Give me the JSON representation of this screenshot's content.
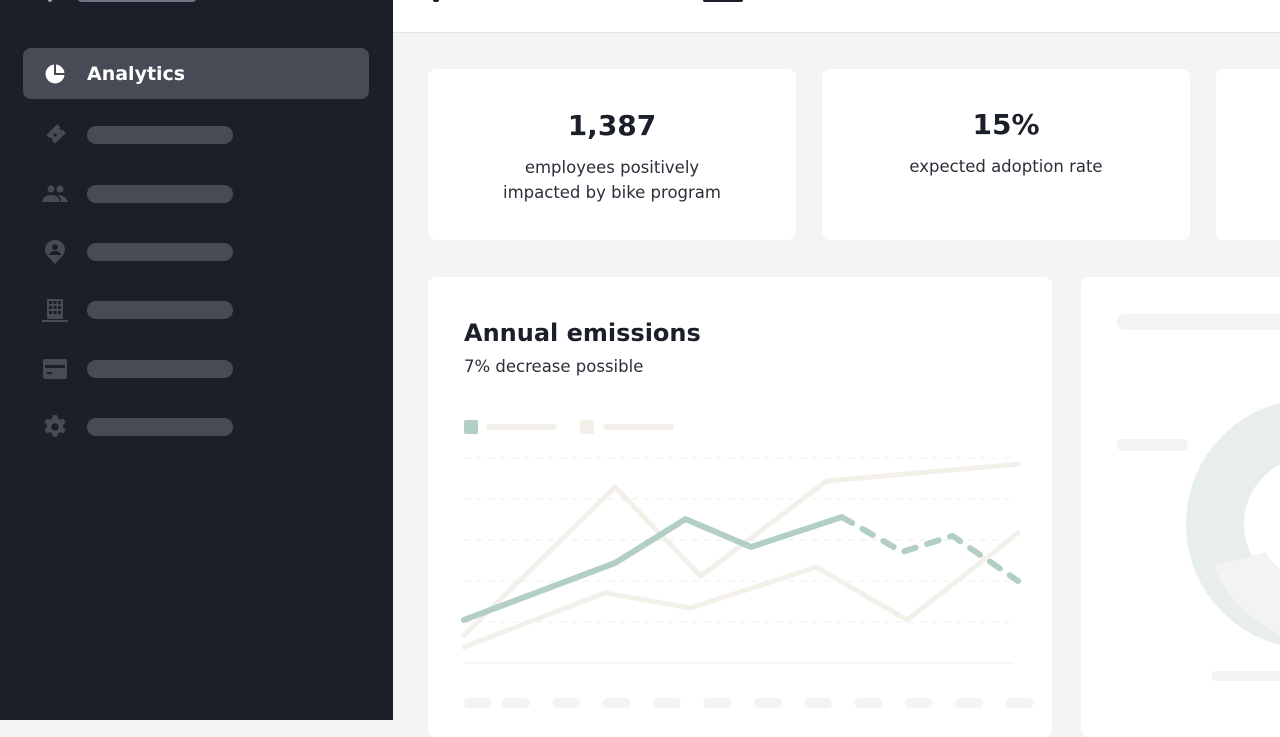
{
  "sidebar": {
    "items": [
      {
        "label": "Analytics",
        "icon": "pie-chart-icon",
        "active": true
      },
      {
        "icon": "ticket-icon"
      },
      {
        "icon": "people-icon"
      },
      {
        "icon": "person-pin-icon"
      },
      {
        "icon": "building-icon"
      },
      {
        "icon": "credit-card-icon"
      },
      {
        "icon": "gear-icon"
      }
    ]
  },
  "stats": [
    {
      "value": "1,387",
      "label_line1": "employees positively",
      "label_line2": "impacted by bike program"
    },
    {
      "value": "15%",
      "label_line1": "expected adoption rate"
    }
  ],
  "emissions_card": {
    "title": "Annual emissions",
    "subtitle": "7% decrease possible"
  },
  "colors": {
    "sidebar_bg": "#1b1f2a",
    "accent_green": "#b3cfc5",
    "beige": "#f3f0e9",
    "active_item": "#474b56"
  },
  "chart_data": {
    "type": "line",
    "grid": true,
    "legend": "top-left",
    "xlim": [
      0,
      11
    ],
    "ylim": [
      0,
      5
    ],
    "series": [
      {
        "color": "#b3cfc5",
        "points": [
          [
            0,
            1.05
          ],
          [
            3.0,
            2.44
          ],
          [
            4.4,
            3.51
          ],
          [
            5.7,
            2.83
          ],
          [
            7.5,
            3.56
          ]
        ],
        "projection": [
          [
            7.5,
            3.56
          ],
          [
            8.7,
            2.71
          ],
          [
            9.7,
            3.1
          ],
          [
            11,
            2.0
          ]
        ]
      },
      {
        "color": "#f3f0e9",
        "points": [
          [
            0,
            0.68
          ],
          [
            3.0,
            4.29
          ],
          [
            4.7,
            2.12
          ],
          [
            7.2,
            4.44
          ],
          [
            11,
            4.85
          ]
        ]
      },
      {
        "color": "#f3f0e9",
        "points": [
          [
            0,
            0.39
          ],
          [
            2.8,
            1.71
          ],
          [
            4.5,
            1.34
          ],
          [
            7.0,
            2.34
          ],
          [
            8.8,
            1.05
          ],
          [
            11,
            3.17
          ]
        ]
      }
    ]
  }
}
